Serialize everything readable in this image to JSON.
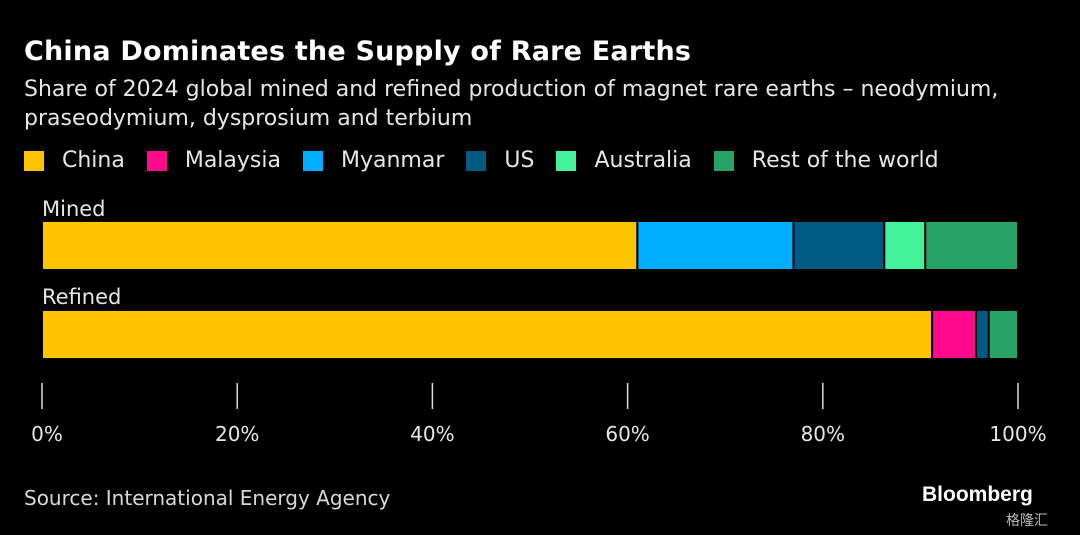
{
  "chart_data": {
    "type": "bar",
    "orientation": "horizontal-stacked",
    "title": "China Dominates the Supply of Rare Earths",
    "subtitle": "Share of 2024 global mined and refined production of magnet rare earths – neodymium, praseodymium, dysprosium and terbium",
    "categories": [
      "Mined",
      "Refined"
    ],
    "series": [
      {
        "name": "China",
        "color": "#FFC400",
        "values": [
          61.0,
          91.2
        ]
      },
      {
        "name": "Malaysia",
        "color": "#FF0A8C",
        "values": [
          0,
          4.5
        ]
      },
      {
        "name": "Myanmar",
        "color": "#00AEFF",
        "values": [
          16.0,
          0
        ]
      },
      {
        "name": "US",
        "color": "#005A82",
        "values": [
          9.3,
          1.3
        ]
      },
      {
        "name": "Australia",
        "color": "#44F29A",
        "values": [
          4.2,
          0
        ]
      },
      {
        "name": "Rest of the world",
        "color": "#27A465",
        "values": [
          9.5,
          3.0
        ]
      }
    ],
    "xlim": [
      0,
      100
    ],
    "xticks": [
      "0%",
      "20%",
      "40%",
      "60%",
      "80%",
      "100%"
    ],
    "legend": "top",
    "grid": false
  },
  "source": "Source: International Energy Agency",
  "brand": "Bloomberg",
  "watermark": "格隆汇"
}
